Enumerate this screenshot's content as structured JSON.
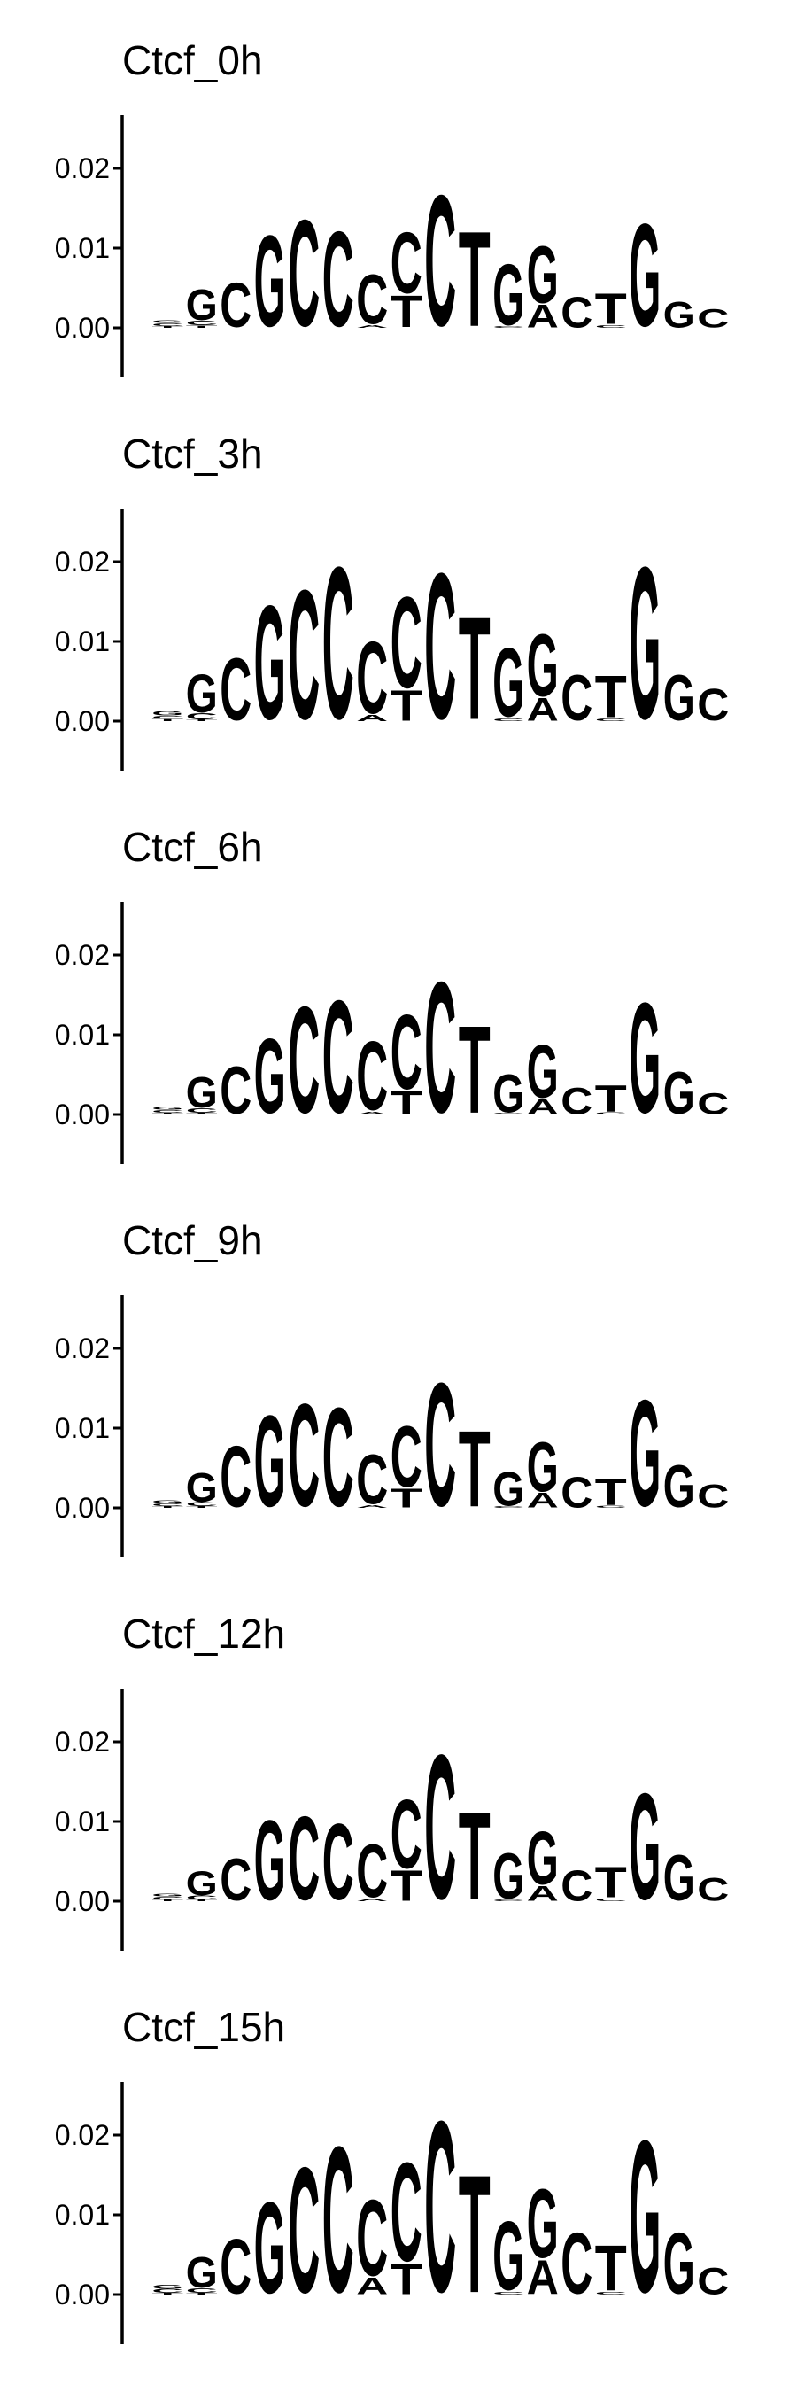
{
  "colors": {
    "A": "#109648",
    "C": "#255C99",
    "G": "#F7B32B",
    "T": "#D62839",
    "axis": "#000000"
  },
  "chart_data": [
    {
      "type": "sequence-logo",
      "title": "Ctcf_0h",
      "ylim": [
        0,
        0.026
      ],
      "yticks": [
        "0.00",
        "0.01",
        "0.02"
      ],
      "positions": [
        [
          [
            "T",
            0.0002
          ],
          [
            "C",
            0.0004
          ],
          [
            "G",
            0.0004
          ]
        ],
        [
          [
            "T",
            0.0003
          ],
          [
            "C",
            0.0006
          ],
          [
            "G",
            0.004
          ]
        ],
        [
          [
            "C",
            0.0058
          ]
        ],
        [
          [
            "G",
            0.012
          ]
        ],
        [
          [
            "C",
            0.014
          ]
        ],
        [
          [
            "C",
            0.0125
          ]
        ],
        [
          [
            "A",
            0.0004
          ],
          [
            "C",
            0.0065
          ]
        ],
        [
          [
            "T",
            0.0042
          ],
          [
            "C",
            0.008
          ]
        ],
        [
          [
            "C",
            0.0172
          ]
        ],
        [
          [
            "T",
            0.0125
          ]
        ],
        [
          [
            "C",
            0.0002
          ],
          [
            "G",
            0.008
          ]
        ],
        [
          [
            "A",
            0.003
          ],
          [
            "G",
            0.0075
          ]
        ],
        [
          [
            "C",
            0.004
          ]
        ],
        [
          [
            "C",
            0.0004
          ],
          [
            "T",
            0.004
          ]
        ],
        [
          [
            "G",
            0.0135
          ]
        ],
        [
          [
            "G",
            0.0034
          ]
        ],
        [
          [
            "C",
            0.0024
          ]
        ]
      ]
    },
    {
      "type": "sequence-logo",
      "title": "Ctcf_3h",
      "ylim": [
        0,
        0.026
      ],
      "yticks": [
        "0.00",
        "0.01",
        "0.02"
      ],
      "positions": [
        [
          [
            "T",
            0.0003
          ],
          [
            "C",
            0.0004
          ],
          [
            "G",
            0.0006
          ]
        ],
        [
          [
            "T",
            0.0002
          ],
          [
            "C",
            0.0008
          ],
          [
            "G",
            0.005
          ]
        ],
        [
          [
            "C",
            0.0082
          ]
        ],
        [
          [
            "G",
            0.015
          ]
        ],
        [
          [
            "C",
            0.017
          ]
        ],
        [
          [
            "C",
            0.02
          ]
        ],
        [
          [
            "A",
            0.0008
          ],
          [
            "C",
            0.0095
          ]
        ],
        [
          [
            "T",
            0.004
          ],
          [
            "C",
            0.012
          ]
        ],
        [
          [
            "C",
            0.0192
          ]
        ],
        [
          [
            "T",
            0.0135
          ]
        ],
        [
          [
            "C",
            0.0004
          ],
          [
            "G",
            0.009
          ]
        ],
        [
          [
            "A",
            0.003
          ],
          [
            "G",
            0.0082
          ]
        ],
        [
          [
            "C",
            0.006
          ]
        ],
        [
          [
            "C",
            0.0004
          ],
          [
            "T",
            0.0055
          ]
        ],
        [
          [
            "G",
            0.02
          ]
        ],
        [
          [
            "G",
            0.006
          ]
        ],
        [
          [
            "C",
            0.0042
          ]
        ]
      ]
    },
    {
      "type": "sequence-logo",
      "title": "Ctcf_6h",
      "ylim": [
        0,
        0.026
      ],
      "yticks": [
        "0.00",
        "0.01",
        "0.02"
      ],
      "positions": [
        [
          [
            "T",
            0.0002
          ],
          [
            "C",
            0.0004
          ],
          [
            "G",
            0.0004
          ]
        ],
        [
          [
            "T",
            0.0002
          ],
          [
            "C",
            0.0006
          ],
          [
            "G",
            0.004
          ]
        ],
        [
          [
            "C",
            0.0062
          ]
        ],
        [
          [
            "G",
            0.0098
          ]
        ],
        [
          [
            "C",
            0.014
          ]
        ],
        [
          [
            "C",
            0.0148
          ]
        ],
        [
          [
            "A",
            0.0004
          ],
          [
            "C",
            0.009
          ]
        ],
        [
          [
            "T",
            0.003
          ],
          [
            "C",
            0.0098
          ]
        ],
        [
          [
            "C",
            0.0172
          ]
        ],
        [
          [
            "T",
            0.0115
          ]
        ],
        [
          [
            "C",
            0.0002
          ],
          [
            "G",
            0.005
          ]
        ],
        [
          [
            "A",
            0.002
          ],
          [
            "G",
            0.007
          ]
        ],
        [
          [
            "C",
            0.0035
          ]
        ],
        [
          [
            "C",
            0.0003
          ],
          [
            "T",
            0.0035
          ]
        ],
        [
          [
            "G",
            0.0145
          ]
        ],
        [
          [
            "G",
            0.0055
          ]
        ],
        [
          [
            "C",
            0.0028
          ]
        ]
      ]
    },
    {
      "type": "sequence-logo",
      "title": "Ctcf_9h",
      "ylim": [
        0,
        0.026
      ],
      "yticks": [
        "0.00",
        "0.01",
        "0.02"
      ],
      "positions": [
        [
          [
            "T",
            0.0002
          ],
          [
            "C",
            0.0004
          ],
          [
            "G",
            0.0004
          ]
        ],
        [
          [
            "T",
            0.0002
          ],
          [
            "C",
            0.0005
          ],
          [
            "G",
            0.0038
          ]
        ],
        [
          [
            "C",
            0.008
          ]
        ],
        [
          [
            "G",
            0.012
          ]
        ],
        [
          [
            "C",
            0.0135
          ]
        ],
        [
          [
            "C",
            0.013
          ]
        ],
        [
          [
            "A",
            0.0004
          ],
          [
            "C",
            0.0065
          ]
        ],
        [
          [
            "T",
            0.0025
          ],
          [
            "C",
            0.008
          ]
        ],
        [
          [
            "C",
            0.0162
          ]
        ],
        [
          [
            "T",
            0.01
          ]
        ],
        [
          [
            "C",
            0.0002
          ],
          [
            "G",
            0.0045
          ]
        ],
        [
          [
            "A",
            0.002
          ],
          [
            "G",
            0.0065
          ]
        ],
        [
          [
            "C",
            0.004
          ]
        ],
        [
          [
            "C",
            0.0003
          ],
          [
            "T",
            0.0035
          ]
        ],
        [
          [
            "G",
            0.014
          ]
        ],
        [
          [
            "G",
            0.0055
          ]
        ],
        [
          [
            "C",
            0.003
          ]
        ]
      ]
    },
    {
      "type": "sequence-logo",
      "title": "Ctcf_12h",
      "ylim": [
        0,
        0.026
      ],
      "yticks": [
        "0.00",
        "0.01",
        "0.02"
      ],
      "positions": [
        [
          [
            "T",
            0.0002
          ],
          [
            "C",
            0.0004
          ],
          [
            "G",
            0.0004
          ]
        ],
        [
          [
            "T",
            0.0002
          ],
          [
            "C",
            0.0005
          ],
          [
            "G",
            0.0032
          ]
        ],
        [
          [
            "C",
            0.0055
          ]
        ],
        [
          [
            "G",
            0.0105
          ]
        ],
        [
          [
            "C",
            0.011
          ]
        ],
        [
          [
            "C",
            0.01
          ]
        ],
        [
          [
            "A",
            0.0004
          ],
          [
            "C",
            0.007
          ]
        ],
        [
          [
            "T",
            0.004
          ],
          [
            "C",
            0.009
          ]
        ],
        [
          [
            "C",
            0.019
          ]
        ],
        [
          [
            "T",
            0.0115
          ]
        ],
        [
          [
            "C",
            0.0002
          ],
          [
            "G",
            0.006
          ]
        ],
        [
          [
            "A",
            0.002
          ],
          [
            "G",
            0.007
          ]
        ],
        [
          [
            "C",
            0.004
          ]
        ],
        [
          [
            "C",
            0.0004
          ],
          [
            "T",
            0.004
          ]
        ],
        [
          [
            "G",
            0.014
          ]
        ],
        [
          [
            "G",
            0.006
          ]
        ],
        [
          [
            "C",
            0.003
          ]
        ]
      ]
    },
    {
      "type": "sequence-logo",
      "title": "Ctcf_15h",
      "ylim": [
        0,
        0.026
      ],
      "yticks": [
        "0.00",
        "0.01",
        "0.02"
      ],
      "positions": [
        [
          [
            "T",
            0.0002
          ],
          [
            "C",
            0.0005
          ],
          [
            "G",
            0.0005
          ]
        ],
        [
          [
            "T",
            0.0002
          ],
          [
            "C",
            0.0006
          ],
          [
            "G",
            0.004
          ]
        ],
        [
          [
            "C",
            0.0072
          ]
        ],
        [
          [
            "G",
            0.012
          ]
        ],
        [
          [
            "C",
            0.0165
          ]
        ],
        [
          [
            "C",
            0.0192
          ]
        ],
        [
          [
            "A",
            0.0022
          ],
          [
            "C",
            0.01
          ]
        ],
        [
          [
            "T",
            0.004
          ],
          [
            "C",
            0.013
          ]
        ],
        [
          [
            "C",
            0.0225
          ]
        ],
        [
          [
            "T",
            0.0155
          ]
        ],
        [
          [
            "C",
            0.0004
          ],
          [
            "G",
            0.009
          ]
        ],
        [
          [
            "A",
            0.0045
          ],
          [
            "G",
            0.009
          ]
        ],
        [
          [
            "C",
            0.008
          ]
        ],
        [
          [
            "C",
            0.0004
          ],
          [
            "T",
            0.006
          ]
        ],
        [
          [
            "G",
            0.02
          ]
        ],
        [
          [
            "G",
            0.008
          ]
        ],
        [
          [
            "C",
            0.0035
          ]
        ]
      ]
    }
  ]
}
